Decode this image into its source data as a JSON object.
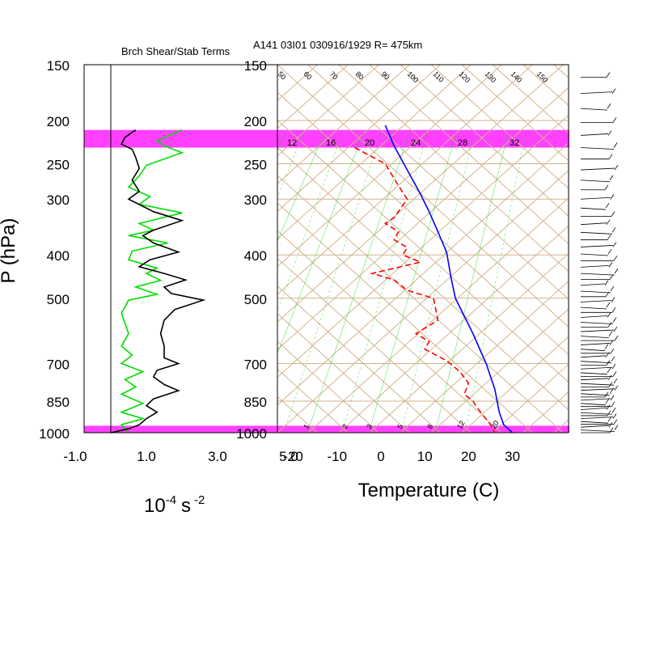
{
  "title_right": "A141 03I01 030916/1929 R= 475km",
  "title_left": "Brch Shear/Stab Terms",
  "ylabel": "P (hPa)",
  "left_xlabel_base": "10",
  "left_xlabel_exp": "-4",
  "left_xlabel_unit": "s",
  "left_xlabel_exp2": "-2",
  "right_xlabel": "Temperature (C)",
  "colors": {
    "temperature": "#ff0000",
    "virtual_temperature": "#0000ff",
    "highlight": "#ff00ff",
    "isotherm_adiabat": "#d2b48c",
    "mixing_ratio": "#00cc00",
    "shear_term": "#000000",
    "stability_term": "#00dd00"
  },
  "pressure_ticks": [
    "150",
    "200",
    "250",
    "300",
    "400",
    "500",
    "700",
    "850",
    "1000"
  ],
  "left_x_ticks": [
    "-1.0",
    "1.0",
    "3.0",
    "5.0"
  ],
  "temp_ticks": [
    "-20",
    "-10",
    "0",
    "10",
    "20",
    "30"
  ],
  "mix_labels_top": [
    "12",
    "16",
    "20",
    "24",
    "28",
    "32"
  ],
  "mix_labels_bottom": [
    "1",
    "2",
    "3",
    "5",
    "8",
    "12",
    "20"
  ],
  "theta_labels": [
    "50",
    "60",
    "70",
    "80",
    "90",
    "100",
    "110",
    "120",
    "130",
    "140",
    "150"
  ],
  "chart_data": [
    {
      "type": "line",
      "title": "Brch Shear/Stab Terms",
      "xlabel": "10^-4 s^-2",
      "ylabel": "P (hPa)",
      "xlim": [
        -1.0,
        5.0
      ],
      "ylim": [
        1000,
        150
      ],
      "y_scale": "log",
      "highlight_bands_hpa": [
        [
          230,
          210
        ],
        [
          1000,
          965
        ]
      ],
      "series": [
        {
          "color": "black",
          "points": [
            [
              0.7,
              210
            ],
            [
              0.4,
              218
            ],
            [
              0.3,
              226
            ],
            [
              0.6,
              232
            ],
            [
              0.7,
              242
            ],
            [
              0.8,
              256
            ],
            [
              0.6,
              272
            ],
            [
              0.8,
              288
            ],
            [
              0.5,
              300
            ],
            [
              1.2,
              320
            ],
            [
              2.0,
              335
            ],
            [
              1.2,
              352
            ],
            [
              0.9,
              362
            ],
            [
              1.2,
              376
            ],
            [
              1.9,
              394
            ],
            [
              1.1,
              410
            ],
            [
              0.8,
              425
            ],
            [
              1.5,
              440
            ],
            [
              2.1,
              455
            ],
            [
              1.5,
              472
            ],
            [
              1.7,
              488
            ],
            [
              2.6,
              505
            ],
            [
              1.8,
              530
            ],
            [
              1.5,
              560
            ],
            [
              1.4,
              600
            ],
            [
              1.5,
              640
            ],
            [
              1.5,
              680
            ],
            [
              1.9,
              700
            ],
            [
              1.3,
              725
            ],
            [
              1.2,
              750
            ],
            [
              1.5,
              780
            ],
            [
              1.9,
              805
            ],
            [
              1.2,
              840
            ],
            [
              1.0,
              870
            ],
            [
              1.3,
              900
            ],
            [
              1.0,
              930
            ],
            [
              0.8,
              960
            ],
            [
              0.5,
              980
            ],
            [
              0.0,
              1000
            ]
          ]
        },
        {
          "color": "green",
          "points": [
            [
              2.0,
              210
            ],
            [
              1.3,
              222
            ],
            [
              1.5,
              228
            ],
            [
              2.0,
              236
            ],
            [
              1.0,
              252
            ],
            [
              0.8,
              266
            ],
            [
              0.5,
              282
            ],
            [
              1.1,
              296
            ],
            [
              0.8,
              308
            ],
            [
              2.0,
              322
            ],
            [
              0.8,
              340
            ],
            [
              1.2,
              352
            ],
            [
              0.5,
              362
            ],
            [
              1.6,
              376
            ],
            [
              0.6,
              392
            ],
            [
              0.5,
              410
            ],
            [
              1.3,
              428
            ],
            [
              1.0,
              440
            ],
            [
              1.4,
              456
            ],
            [
              0.7,
              472
            ],
            [
              1.3,
              490
            ],
            [
              0.5,
              505
            ],
            [
              0.3,
              540
            ],
            [
              0.5,
              600
            ],
            [
              0.3,
              640
            ],
            [
              0.6,
              670
            ],
            [
              0.3,
              700
            ],
            [
              0.9,
              730
            ],
            [
              0.4,
              760
            ],
            [
              0.7,
              790
            ],
            [
              0.3,
              820
            ],
            [
              0.9,
              860
            ],
            [
              0.3,
              900
            ],
            [
              0.9,
              930
            ],
            [
              0.3,
              960
            ],
            [
              0.5,
              1000
            ]
          ]
        }
      ]
    },
    {
      "type": "line",
      "title": "A141 03I01 030916/1929 R= 475km",
      "xlabel": "Temperature (C)",
      "ylabel": "P (hPa)",
      "xlim": [
        -20,
        30
      ],
      "ylim": [
        1000,
        150
      ],
      "y_scale": "log",
      "grid": true,
      "series": [
        {
          "color": "red",
          "style": "dashed",
          "points": [
            [
              -6,
              230
            ],
            [
              1,
              250
            ],
            [
              4,
              280
            ],
            [
              6,
              300
            ],
            [
              3,
              330
            ],
            [
              1,
              340
            ],
            [
              4,
              355
            ],
            [
              3,
              370
            ],
            [
              6,
              385
            ],
            [
              5,
              400
            ],
            [
              9,
              415
            ],
            [
              -2,
              440
            ],
            [
              3,
              455
            ],
            [
              6,
              480
            ],
            [
              12,
              500
            ],
            [
              13,
              560
            ],
            [
              8,
              600
            ],
            [
              11,
              625
            ],
            [
              10,
              650
            ],
            [
              15,
              690
            ],
            [
              18,
              730
            ],
            [
              20,
              775
            ],
            [
              19,
              820
            ],
            [
              21,
              850
            ],
            [
              22,
              880
            ],
            [
              25,
              960
            ],
            [
              26,
              1000
            ]
          ]
        },
        {
          "color": "blue",
          "style": "solid",
          "points": [
            [
              1,
              205
            ],
            [
              3,
              228
            ],
            [
              6,
              258
            ],
            [
              9,
              292
            ],
            [
              11,
              320
            ],
            [
              13,
              355
            ],
            [
              15,
              395
            ],
            [
              16,
              450
            ],
            [
              17,
              500
            ],
            [
              21,
              600
            ],
            [
              24,
              700
            ],
            [
              26,
              800
            ],
            [
              27,
              900
            ],
            [
              28,
              960
            ],
            [
              30,
              1000
            ]
          ]
        }
      ]
    }
  ]
}
